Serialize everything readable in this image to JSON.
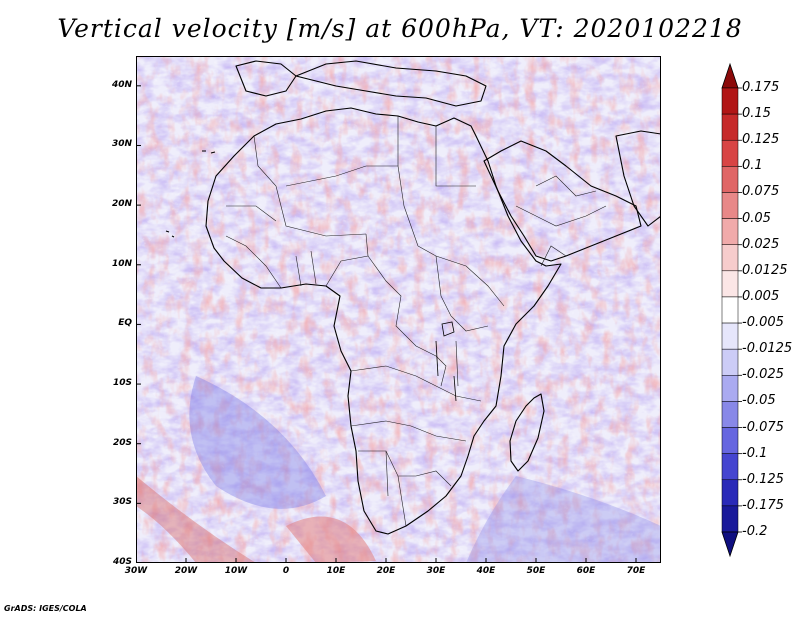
{
  "title": "Vertical velocity [m/s] at 600hPa, VT: 2020102218",
  "credit": "GrADS: IGES/COLA",
  "map": {
    "lon_range": [
      -30,
      75
    ],
    "lat_range": [
      -40,
      45
    ],
    "lat_labels": [
      "40N",
      "30N",
      "20N",
      "10N",
      "EQ",
      "10S",
      "20S",
      "30S",
      "40S"
    ],
    "lat_values": [
      40,
      30,
      20,
      10,
      0,
      -10,
      -20,
      -30,
      -40
    ],
    "lon_labels": [
      "30W",
      "20W",
      "10W",
      "0",
      "10E",
      "20E",
      "30E",
      "40E",
      "50E",
      "60E",
      "70E"
    ],
    "lon_values": [
      -30,
      -20,
      -10,
      0,
      10,
      20,
      30,
      40,
      50,
      60,
      70
    ]
  },
  "colorbar": {
    "labels": [
      "0.175",
      "0.15",
      "0.125",
      "0.1",
      "0.075",
      "0.05",
      "0.025",
      "0.0125",
      "0.005",
      "-0.005",
      "-0.0125",
      "-0.025",
      "-0.05",
      "-0.075",
      "-0.1",
      "-0.125",
      "-0.175",
      "-0.2"
    ],
    "colors": [
      "#8b0a0a",
      "#b11616",
      "#c62a2a",
      "#d84545",
      "#e06666",
      "#e88888",
      "#f0aaaa",
      "#f6cccc",
      "#fbe6e6",
      "#ffffff",
      "#e6e6fb",
      "#ccccf6",
      "#aaaaf0",
      "#8888e8",
      "#6666e0",
      "#4545d0",
      "#2a2ab8",
      "#1a1a9a",
      "#0f0f80"
    ]
  },
  "colors": {
    "land_line": "#000000",
    "field_neutral": "#f4f2fb",
    "field_pos": "#e99a9a",
    "field_neg": "#9c9cf0"
  }
}
